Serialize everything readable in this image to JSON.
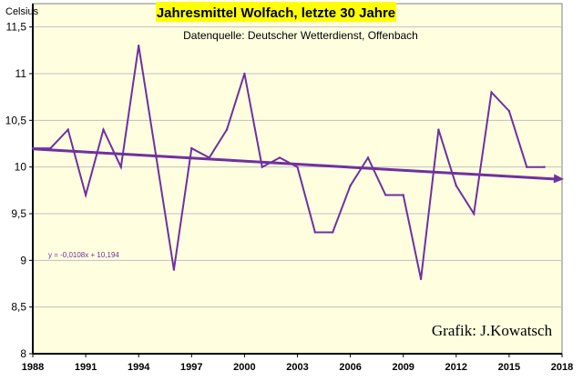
{
  "chart_data": {
    "type": "line",
    "title": "Jahresmittel Wolfach, letzte 30 Jahre",
    "subtitle": "Datenquelle: Deutscher Wetterdienst, Offenbach",
    "ylabel": "Celsius",
    "credit": "Grafik:  J.Kowatsch",
    "trend_equation": "y = -0,0108x + 10,194",
    "xlim": [
      1988,
      2018
    ],
    "ylim": [
      8,
      11.75
    ],
    "x_ticks": [
      1988,
      1991,
      1994,
      1997,
      2000,
      2003,
      2006,
      2009,
      2012,
      2015,
      2018
    ],
    "y_ticks": [
      8,
      8.5,
      9,
      9.5,
      10,
      10.5,
      11,
      11.5
    ],
    "y_tick_labels": [
      "8",
      "8,5",
      "9",
      "9,5",
      "10",
      "10,5",
      "11",
      "11,5"
    ],
    "grid": "horizontal",
    "series": [
      {
        "values": [
          [
            1988,
            10.2
          ],
          [
            1989,
            10.2
          ],
          [
            1990,
            10.4
          ],
          [
            1991,
            9.7
          ],
          [
            1992,
            10.4
          ],
          [
            1993,
            10.0
          ],
          [
            1994,
            11.3
          ],
          [
            1995,
            10.1
          ],
          [
            1996,
            8.9
          ],
          [
            1997,
            10.2
          ],
          [
            1998,
            10.1
          ],
          [
            1999,
            10.4
          ],
          [
            2000,
            11.0
          ],
          [
            2001,
            10.0
          ],
          [
            2002,
            10.1
          ],
          [
            2003,
            10.0
          ],
          [
            2004,
            9.3
          ],
          [
            2005,
            9.3
          ],
          [
            2006,
            9.8
          ],
          [
            2007,
            10.1
          ],
          [
            2008,
            9.7
          ],
          [
            2009,
            9.7
          ],
          [
            2010,
            8.8
          ],
          [
            2011,
            10.4
          ],
          [
            2012,
            9.8
          ],
          [
            2013,
            9.5
          ],
          [
            2014,
            10.8
          ],
          [
            2015,
            10.6
          ],
          [
            2016,
            10.0
          ],
          [
            2017,
            10.0
          ]
        ]
      }
    ],
    "trend": {
      "slope": -0.0108,
      "intercept": 10.194,
      "x_start": 1988,
      "x_end": 2018
    },
    "colors": {
      "series": "#7030a0",
      "trend": "#7030a0",
      "plot_background": "#ffffe0",
      "title_background": "#ffff00",
      "grid": "#c0c0c0"
    }
  }
}
